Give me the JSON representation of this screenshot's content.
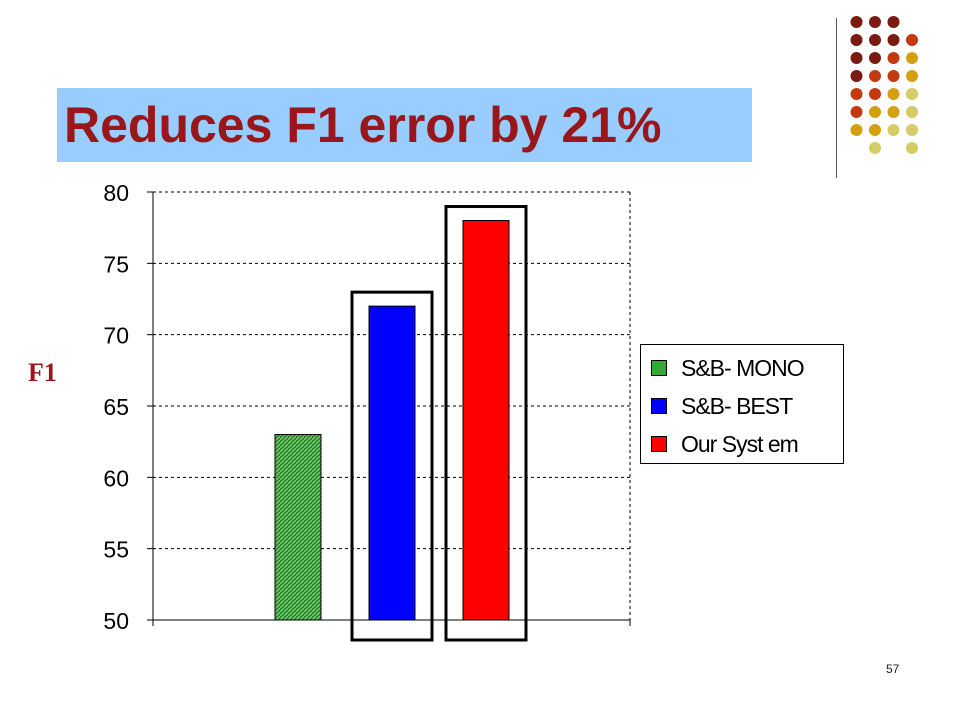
{
  "slide": {
    "title": "Reduces F1 error by 21%",
    "y_side_label": "F1",
    "page_number": "57"
  },
  "colors": {
    "title_band": "#99ccff",
    "title_text": "#99161b",
    "bar_mono": "#33aa33",
    "bar_best": "#0000ff",
    "bar_ours": "#ff0000"
  },
  "chart_data": {
    "type": "bar",
    "series": [
      {
        "name": "S&B- MONO",
        "value": 63,
        "color": "#33aa33",
        "pattern": "hatched"
      },
      {
        "name": "S&B- BEST",
        "value": 72,
        "color": "#0000ff"
      },
      {
        "name": "Our   Syst em",
        "value": 78,
        "color": "#ff0000"
      }
    ],
    "ylim": [
      50,
      80
    ],
    "yticks": [
      "50",
      "55",
      "60",
      "65",
      "70",
      "75",
      "80"
    ],
    "grid": "dashed horizontal",
    "legend_position": "right",
    "highlight_boxes": [
      "S&B- BEST",
      "Our   Syst em"
    ]
  }
}
